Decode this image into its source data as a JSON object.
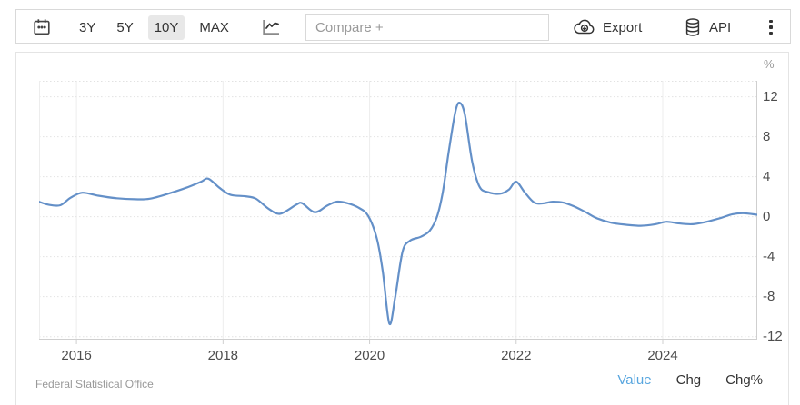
{
  "toolbar": {
    "ranges": [
      {
        "label": "3Y",
        "selected": false
      },
      {
        "label": "5Y",
        "selected": false
      },
      {
        "label": "10Y",
        "selected": true
      },
      {
        "label": "MAX",
        "selected": false
      }
    ],
    "compare_placeholder": "Compare +",
    "export_label": "Export",
    "api_label": "API"
  },
  "chart_data": {
    "type": "line",
    "title": "",
    "unit": "%",
    "xlabel": "",
    "ylabel": "%",
    "xlim": [
      2015.49,
      2025.29
    ],
    "ylim": [
      -12.3,
      13.6
    ],
    "xticks": [
      2016,
      2018,
      2020,
      2022,
      2024
    ],
    "yticks": [
      12,
      8,
      4,
      0,
      -4,
      -8,
      -12
    ],
    "grid": true,
    "legend_position": "none",
    "series": [
      {
        "name": "Value",
        "color": "#6490c8",
        "points": [
          [
            2015.49,
            1.5
          ],
          [
            2015.62,
            1.2
          ],
          [
            2015.78,
            1.15
          ],
          [
            2015.92,
            1.9
          ],
          [
            2016.08,
            2.4
          ],
          [
            2016.3,
            2.1
          ],
          [
            2016.55,
            1.85
          ],
          [
            2016.8,
            1.75
          ],
          [
            2017.0,
            1.8
          ],
          [
            2017.25,
            2.3
          ],
          [
            2017.5,
            2.9
          ],
          [
            2017.7,
            3.5
          ],
          [
            2017.8,
            3.8
          ],
          [
            2017.95,
            2.9
          ],
          [
            2018.1,
            2.2
          ],
          [
            2018.3,
            2.05
          ],
          [
            2018.45,
            1.8
          ],
          [
            2018.62,
            0.8
          ],
          [
            2018.78,
            0.3
          ],
          [
            2019.0,
            1.2
          ],
          [
            2019.08,
            1.35
          ],
          [
            2019.25,
            0.45
          ],
          [
            2019.42,
            1.1
          ],
          [
            2019.55,
            1.5
          ],
          [
            2019.7,
            1.35
          ],
          [
            2019.85,
            0.9
          ],
          [
            2019.98,
            0.1
          ],
          [
            2020.1,
            -2.2
          ],
          [
            2020.18,
            -5.5
          ],
          [
            2020.27,
            -10.7
          ],
          [
            2020.35,
            -8.0
          ],
          [
            2020.45,
            -3.5
          ],
          [
            2020.55,
            -2.4
          ],
          [
            2020.7,
            -2.0
          ],
          [
            2020.82,
            -1.4
          ],
          [
            2020.92,
            0.0
          ],
          [
            2021.0,
            2.5
          ],
          [
            2021.08,
            6.5
          ],
          [
            2021.17,
            10.5
          ],
          [
            2021.23,
            11.4
          ],
          [
            2021.3,
            10.2
          ],
          [
            2021.4,
            5.5
          ],
          [
            2021.5,
            3.0
          ],
          [
            2021.62,
            2.45
          ],
          [
            2021.78,
            2.3
          ],
          [
            2021.9,
            2.7
          ],
          [
            2022.0,
            3.5
          ],
          [
            2022.12,
            2.4
          ],
          [
            2022.25,
            1.4
          ],
          [
            2022.38,
            1.35
          ],
          [
            2022.5,
            1.5
          ],
          [
            2022.65,
            1.4
          ],
          [
            2022.8,
            1.0
          ],
          [
            2022.95,
            0.45
          ],
          [
            2023.1,
            -0.15
          ],
          [
            2023.3,
            -0.6
          ],
          [
            2023.5,
            -0.8
          ],
          [
            2023.7,
            -0.9
          ],
          [
            2023.9,
            -0.75
          ],
          [
            2024.05,
            -0.5
          ],
          [
            2024.2,
            -0.65
          ],
          [
            2024.4,
            -0.75
          ],
          [
            2024.6,
            -0.5
          ],
          [
            2024.8,
            -0.1
          ],
          [
            2024.95,
            0.25
          ],
          [
            2025.1,
            0.35
          ],
          [
            2025.29,
            0.2
          ]
        ]
      }
    ]
  },
  "footer": {
    "source": "Federal Statistical Office",
    "links": [
      {
        "label": "Value",
        "active": true
      },
      {
        "label": "Chg",
        "active": false
      },
      {
        "label": "Chg%",
        "active": false
      }
    ]
  },
  "colors": {
    "accent_blue": "#58a6df",
    "line_blue": "#6490c8",
    "grid": "#e2e2e2",
    "axis": "#cfcfcf"
  }
}
